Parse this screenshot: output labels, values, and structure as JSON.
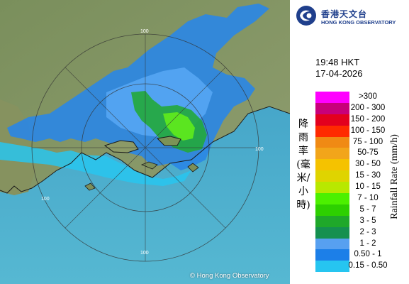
{
  "map": {
    "copyright": "© Hong Kong Observatory",
    "ring_labels": [
      "100",
      "100",
      "100",
      "100"
    ]
  },
  "logo": {
    "name_zh": "香港天文台",
    "name_en": "HONG KONG OBSERVATORY"
  },
  "timestamp": {
    "time": "19:48 HKT",
    "date": "17-04-2026"
  },
  "legend": {
    "title_en": "Rainfall Rate (mm/h)",
    "title_zh": "降雨率(毫米/小時)",
    "items": [
      {
        "label": ">300",
        "color": "#ff00ff"
      },
      {
        "label": "200 - 300",
        "color": "#c8007a"
      },
      {
        "label": "150 - 200",
        "color": "#e3001e"
      },
      {
        "label": "100 - 150",
        "color": "#ff2a00"
      },
      {
        "label": "75 - 100",
        "color": "#f08a14"
      },
      {
        "label": "50-75",
        "color": "#f2a51a"
      },
      {
        "label": "30 - 50",
        "color": "#f5c200"
      },
      {
        "label": "15 - 30",
        "color": "#dfd400"
      },
      {
        "label": "10 - 15",
        "color": "#b8e800"
      },
      {
        "label": "7 - 10",
        "color": "#4cf000"
      },
      {
        "label": "5 - 7",
        "color": "#2dd000"
      },
      {
        "label": "3 - 5",
        "color": "#1fa82a"
      },
      {
        "label": "2 - 3",
        "color": "#159050"
      },
      {
        "label": "1 - 2",
        "color": "#57a0f0"
      },
      {
        "label": "0.50 - 1",
        "color": "#1c7fe8"
      },
      {
        "label": "0.15 - 0.50",
        "color": "#26c5f0"
      }
    ]
  }
}
